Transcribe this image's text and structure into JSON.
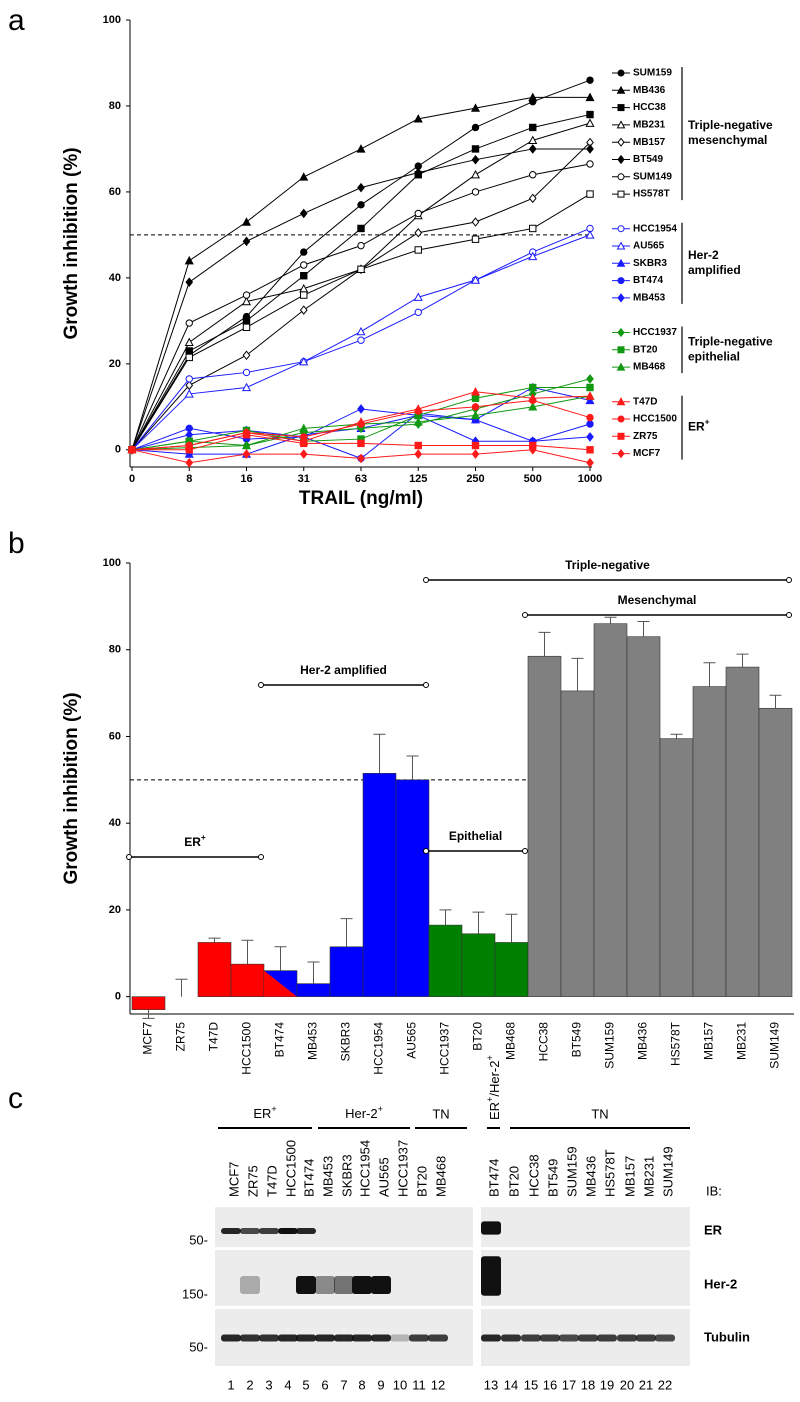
{
  "chart_data": [
    {
      "type": "line",
      "panel": "a",
      "ylabel": "Growth inhibition (%)",
      "xlabel": "TRAIL (ng/ml)",
      "categories": [
        "0",
        "8",
        "16",
        "31",
        "63",
        "125",
        "250",
        "500",
        "1000"
      ],
      "ylim": [
        -4,
        100
      ],
      "yticks": [
        0,
        20,
        40,
        60,
        80,
        100
      ],
      "reference_line": 50,
      "series": [
        {
          "name": "SUM159",
          "color": "#000000",
          "marker": "circle",
          "filled": true,
          "values": [
            0,
            22,
            31,
            46,
            57,
            66,
            75,
            81,
            86
          ]
        },
        {
          "name": "MB436",
          "color": "#000000",
          "marker": "triangle",
          "filled": true,
          "values": [
            0,
            44,
            53,
            63.5,
            70,
            77,
            79.5,
            82,
            82
          ]
        },
        {
          "name": "HCC38",
          "color": "#000000",
          "marker": "square",
          "filled": true,
          "values": [
            0,
            23,
            30,
            40.5,
            51.5,
            64,
            70,
            75,
            78
          ]
        },
        {
          "name": "MB231",
          "color": "#000000",
          "marker": "triangle",
          "filled": false,
          "values": [
            0,
            25,
            34.5,
            37.5,
            42,
            54.5,
            64,
            72,
            76
          ]
        },
        {
          "name": "MB157",
          "color": "#000000",
          "marker": "diamond",
          "filled": false,
          "values": [
            0,
            15,
            22,
            32.5,
            42,
            50.5,
            53,
            58.5,
            71.5
          ]
        },
        {
          "name": "BT549",
          "color": "#000000",
          "marker": "diamond",
          "filled": true,
          "values": [
            0,
            39,
            48.5,
            55,
            61,
            64.5,
            67.5,
            70,
            70
          ]
        },
        {
          "name": "SUM149",
          "color": "#000000",
          "marker": "circle",
          "filled": false,
          "values": [
            0,
            29.5,
            36,
            43,
            47.5,
            55,
            60,
            64,
            66.5
          ]
        },
        {
          "name": "HS578T",
          "color": "#000000",
          "marker": "square",
          "filled": false,
          "values": [
            0,
            21.5,
            28.5,
            36,
            42,
            46.5,
            49,
            51.5,
            59.5
          ]
        },
        {
          "name": "HCC1954",
          "color": "#1a1aff",
          "marker": "circle",
          "filled": false,
          "values": [
            0,
            16.5,
            18,
            20.5,
            25.5,
            32,
            39.5,
            46,
            51.5
          ]
        },
        {
          "name": "AU565",
          "color": "#1a1aff",
          "marker": "triangle",
          "filled": false,
          "values": [
            0,
            13,
            14.5,
            20.5,
            27.5,
            35.5,
            39.5,
            45,
            50
          ]
        },
        {
          "name": "SKBR3",
          "color": "#1a1aff",
          "marker": "triangle",
          "filled": true,
          "values": [
            0,
            -1,
            -1,
            3.5,
            5,
            8,
            7,
            14.5,
            11.5
          ]
        },
        {
          "name": "BT474",
          "color": "#1a1aff",
          "marker": "circle",
          "filled": true,
          "values": [
            0,
            5,
            2.5,
            3,
            -2,
            8.5,
            7,
            2,
            6
          ]
        },
        {
          "name": "MB453",
          "color": "#1a1aff",
          "marker": "diamond",
          "filled": true,
          "values": [
            0,
            3.5,
            4.5,
            3,
            9.5,
            8,
            2,
            2,
            3
          ]
        },
        {
          "name": "HCC1937",
          "color": "#119911",
          "marker": "diamond",
          "filled": true,
          "values": [
            0,
            0.5,
            1,
            4,
            5,
            6,
            9.5,
            13,
            16.5
          ]
        },
        {
          "name": "BT20",
          "color": "#119911",
          "marker": "square",
          "filled": true,
          "values": [
            0,
            2,
            4.5,
            2,
            2.5,
            8,
            12,
            14.5,
            14.5
          ]
        },
        {
          "name": "MB468",
          "color": "#119911",
          "marker": "triangle",
          "filled": true,
          "values": [
            0,
            2,
            1,
            5,
            6,
            6.5,
            8,
            10,
            12.5
          ]
        },
        {
          "name": "T47D",
          "color": "#ff1a1a",
          "marker": "triangle",
          "filled": true,
          "values": [
            0,
            1,
            4,
            2,
            6.5,
            9.5,
            13.5,
            12,
            12.5
          ]
        },
        {
          "name": "HCC1500",
          "color": "#ff1a1a",
          "marker": "circle",
          "filled": true,
          "values": [
            0,
            1,
            4,
            3,
            6,
            9,
            10,
            11.5,
            7.5
          ]
        },
        {
          "name": "ZR75",
          "color": "#ff1a1a",
          "marker": "square",
          "filled": true,
          "values": [
            0,
            0,
            3.5,
            1.5,
            1.5,
            1,
            1,
            1,
            0
          ]
        },
        {
          "name": "MCF7",
          "color": "#ff1a1a",
          "marker": "diamond",
          "filled": true,
          "values": [
            0,
            -3,
            -1,
            -1,
            -2,
            -1,
            -1,
            0,
            -3
          ]
        }
      ],
      "groups": [
        {
          "lines": [
            "Triple-negative",
            "mesenchymal"
          ],
          "from": "SUM159",
          "to": "HS578T"
        },
        {
          "lines": [
            "Her-2",
            "amplified"
          ],
          "from": "HCC1954",
          "to": "MB453"
        },
        {
          "lines": [
            "Triple-negative",
            "epithelial"
          ],
          "from": "HCC1937",
          "to": "MB468"
        },
        {
          "lines": [
            [
              "ER",
              "+"
            ]
          ],
          "from": "T47D",
          "to": "MCF7"
        }
      ]
    },
    {
      "type": "bar",
      "panel": "b",
      "ylabel": "Growth inhibition (%)",
      "categories": [
        "MCF7",
        "ZR75",
        "T47D",
        "HCC1500",
        "BT474",
        "MB453",
        "SKBR3",
        "HCC1954",
        "AU565",
        "HCC1937",
        "BT20",
        "MB468",
        "HCC38",
        "BT549",
        "SUM159",
        "MB436",
        "HS578T",
        "MB157",
        "MB231",
        "SUM149"
      ],
      "values": [
        -3,
        0,
        12.5,
        7.5,
        6,
        3,
        11.5,
        51.5,
        50,
        16.5,
        14.5,
        12.5,
        78.5,
        70.5,
        86,
        83,
        59.5,
        71.5,
        76,
        66.5
      ],
      "errors": [
        2,
        4,
        1,
        5.5,
        5.5,
        5,
        6.5,
        9,
        5.5,
        3.5,
        5,
        6.5,
        5.5,
        7.5,
        1.5,
        3.5,
        1,
        5.5,
        3,
        3
      ],
      "colors": [
        "#ff0000",
        "#ff0000",
        "#ff0000",
        "#ff0000",
        [
          "#ff0000",
          "#0000ff"
        ],
        "#0000ff",
        "#0000ff",
        "#0000ff",
        "#0000ff",
        "#008000",
        "#008000",
        "#008000",
        "#808080",
        "#808080",
        "#808080",
        "#808080",
        "#808080",
        "#808080",
        "#808080",
        "#808080"
      ],
      "ylim": [
        -4,
        100
      ],
      "yticks": [
        0,
        20,
        40,
        60,
        80,
        100
      ],
      "reference_line": 50,
      "groups": [
        {
          "label": [
            "ER",
            "+"
          ],
          "from": "MCF7",
          "to": "HCC1500",
          "level": 840
        },
        {
          "label": "Her-2 amplified",
          "from": "BT474",
          "to": "AU565",
          "level": 668
        },
        {
          "label": "Epithelial",
          "from": "HCC1937",
          "to": "MB468",
          "level": 834
        },
        {
          "label": "Mesenchymal",
          "from": "HCC38",
          "to": "SUM149",
          "level": 598
        },
        {
          "label": "Triple-negative",
          "from": "HCC1937",
          "to": "SUM149",
          "level": 563
        }
      ]
    }
  ],
  "blot": {
    "panel": "c",
    "groups": [
      {
        "label": [
          "ER",
          "+"
        ]
      },
      {
        "label": [
          "Her-2",
          "+"
        ]
      },
      {
        "label": "TN"
      },
      {
        "label": [
          "ER",
          "+",
          "/Her-2",
          "+"
        ]
      },
      {
        "label": "TN"
      }
    ],
    "lanes": [
      "MCF7",
      "ZR75",
      "T47D",
      "HCC1500",
      "BT474",
      "MB453",
      "SKBR3",
      "HCC1954",
      "AU565",
      "HCC1937",
      "BT20",
      "MB468",
      "BT474",
      "BT20",
      "HCC38",
      "BT549",
      "SUM159",
      "MB436",
      "HS578T",
      "MB157",
      "MB231",
      "SUM149"
    ],
    "lane_numbers": [
      1,
      2,
      3,
      4,
      5,
      6,
      7,
      8,
      9,
      10,
      11,
      12,
      13,
      14,
      15,
      16,
      17,
      18,
      19,
      20,
      21,
      22
    ],
    "ib_label": "IB:",
    "rows": [
      {
        "name": "ER",
        "marker": "50-"
      },
      {
        "name": "Her-2",
        "marker": "150-"
      },
      {
        "name": "Tubulin",
        "marker": "50-"
      }
    ]
  }
}
